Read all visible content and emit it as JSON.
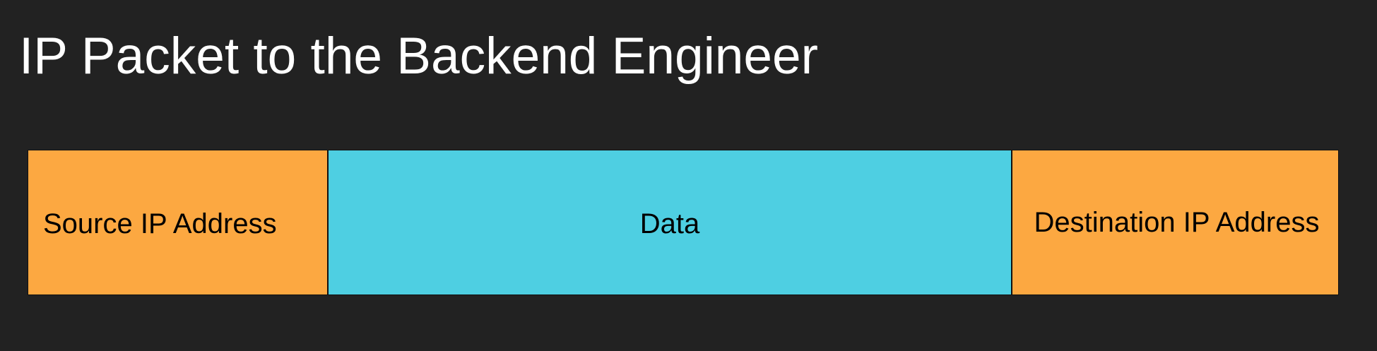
{
  "title": "IP Packet to the Backend Engineer",
  "colors": {
    "background": "#222222",
    "address_field": "#FCA841",
    "data_field": "#4ECFE2",
    "title_text": "#FFFFFF",
    "field_text": "#000000"
  },
  "packet": {
    "fields": [
      {
        "label": "Source IP Address",
        "color": "#FCA841"
      },
      {
        "label": "Data",
        "color": "#4ECFE2"
      },
      {
        "label": "Destination IP Address",
        "color": "#FCA841"
      }
    ]
  }
}
